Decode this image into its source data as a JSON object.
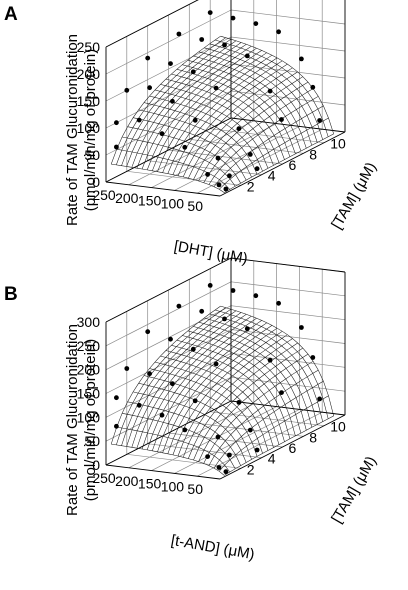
{
  "chart_data": [
    {
      "type": "surface3d",
      "panel_label": "A",
      "zlabel_lines": [
        "Rate of TAM Glucuronidation",
        "(pmol/min/mg of protein)"
      ],
      "xlabel": "[DHT] (μM)",
      "ylabel": "[TAM] (μM)",
      "z_ticks": [
        0,
        50,
        100,
        150,
        200,
        250
      ],
      "x_ticks": [
        250,
        200,
        150,
        100,
        50
      ],
      "y_ticks": [
        2,
        4,
        6,
        8,
        10
      ],
      "xlim": [
        0,
        250
      ],
      "ylim": [
        0,
        12
      ],
      "zlim": [
        0,
        250
      ],
      "model_plateau": 205,
      "x_half": 65,
      "y_half": 3.2,
      "points": [
        {
          "x": 250,
          "y": 1,
          "z": 100
        },
        {
          "x": 250,
          "y": 1,
          "z": 55
        },
        {
          "x": 250,
          "y": 2,
          "z": 150
        },
        {
          "x": 250,
          "y": 4,
          "z": 190
        },
        {
          "x": 250,
          "y": 7,
          "z": 205
        },
        {
          "x": 250,
          "y": 10,
          "z": 215
        },
        {
          "x": 200,
          "y": 1,
          "z": 110
        },
        {
          "x": 200,
          "y": 2,
          "z": 160
        },
        {
          "x": 200,
          "y": 4,
          "z": 185
        },
        {
          "x": 200,
          "y": 7,
          "z": 200
        },
        {
          "x": 200,
          "y": 10,
          "z": 210
        },
        {
          "x": 150,
          "y": 1,
          "z": 90
        },
        {
          "x": 150,
          "y": 2,
          "z": 140
        },
        {
          "x": 150,
          "y": 4,
          "z": 175
        },
        {
          "x": 150,
          "y": 7,
          "z": 195
        },
        {
          "x": 150,
          "y": 10,
          "z": 205
        },
        {
          "x": 100,
          "y": 1,
          "z": 70
        },
        {
          "x": 100,
          "y": 2,
          "z": 110
        },
        {
          "x": 100,
          "y": 4,
          "z": 150
        },
        {
          "x": 100,
          "y": 7,
          "z": 180
        },
        {
          "x": 100,
          "y": 10,
          "z": 195
        },
        {
          "x": 50,
          "y": 1,
          "z": 25
        },
        {
          "x": 50,
          "y": 2,
          "z": 45
        },
        {
          "x": 50,
          "y": 4,
          "z": 80
        },
        {
          "x": 50,
          "y": 7,
          "z": 120
        },
        {
          "x": 50,
          "y": 10,
          "z": 150
        },
        {
          "x": 25,
          "y": 1,
          "z": 8
        },
        {
          "x": 25,
          "y": 2,
          "z": 15
        },
        {
          "x": 25,
          "y": 4,
          "z": 35
        },
        {
          "x": 25,
          "y": 7,
          "z": 70
        },
        {
          "x": 25,
          "y": 10,
          "z": 100
        },
        {
          "x": 10,
          "y": 1,
          "z": 2
        },
        {
          "x": 10,
          "y": 4,
          "z": 10
        },
        {
          "x": 10,
          "y": 10,
          "z": 40
        }
      ]
    },
    {
      "type": "surface3d",
      "panel_label": "B",
      "zlabel_lines": [
        "Rate of TAM Glucuronidation",
        "(pmol/min/mg of protein)"
      ],
      "xlabel": "[t-AND] (μM)",
      "ylabel": "[TAM] (μM)",
      "z_ticks": [
        0,
        50,
        100,
        150,
        200,
        250,
        300
      ],
      "x_ticks": [
        250,
        200,
        150,
        100,
        50
      ],
      "y_ticks": [
        2,
        4,
        6,
        8,
        10
      ],
      "xlim": [
        0,
        250
      ],
      "ylim": [
        0,
        12
      ],
      "zlim": [
        0,
        300
      ],
      "model_plateau": 255,
      "x_half": 55,
      "y_half": 3.0,
      "points": [
        {
          "x": 250,
          "y": 1,
          "z": 130
        },
        {
          "x": 250,
          "y": 1,
          "z": 70
        },
        {
          "x": 250,
          "y": 2,
          "z": 180
        },
        {
          "x": 250,
          "y": 4,
          "z": 235
        },
        {
          "x": 250,
          "y": 7,
          "z": 255
        },
        {
          "x": 250,
          "y": 10,
          "z": 265
        },
        {
          "x": 200,
          "y": 1,
          "z": 120
        },
        {
          "x": 200,
          "y": 2,
          "z": 175
        },
        {
          "x": 200,
          "y": 4,
          "z": 225
        },
        {
          "x": 200,
          "y": 7,
          "z": 250
        },
        {
          "x": 200,
          "y": 10,
          "z": 260
        },
        {
          "x": 150,
          "y": 1,
          "z": 105
        },
        {
          "x": 150,
          "y": 2,
          "z": 160
        },
        {
          "x": 150,
          "y": 4,
          "z": 210
        },
        {
          "x": 150,
          "y": 7,
          "z": 240
        },
        {
          "x": 150,
          "y": 10,
          "z": 255
        },
        {
          "x": 100,
          "y": 1,
          "z": 80
        },
        {
          "x": 100,
          "y": 2,
          "z": 130
        },
        {
          "x": 100,
          "y": 4,
          "z": 185
        },
        {
          "x": 100,
          "y": 7,
          "z": 225
        },
        {
          "x": 100,
          "y": 10,
          "z": 245
        },
        {
          "x": 50,
          "y": 1,
          "z": 30
        },
        {
          "x": 50,
          "y": 2,
          "z": 60
        },
        {
          "x": 50,
          "y": 4,
          "z": 110
        },
        {
          "x": 50,
          "y": 7,
          "z": 165
        },
        {
          "x": 50,
          "y": 10,
          "z": 200
        },
        {
          "x": 25,
          "y": 1,
          "z": 10
        },
        {
          "x": 25,
          "y": 2,
          "z": 25
        },
        {
          "x": 25,
          "y": 4,
          "z": 55
        },
        {
          "x": 25,
          "y": 7,
          "z": 100
        },
        {
          "x": 25,
          "y": 10,
          "z": 140
        },
        {
          "x": 10,
          "y": 1,
          "z": 3
        },
        {
          "x": 10,
          "y": 4,
          "z": 15
        },
        {
          "x": 10,
          "y": 10,
          "z": 55
        }
      ]
    }
  ]
}
